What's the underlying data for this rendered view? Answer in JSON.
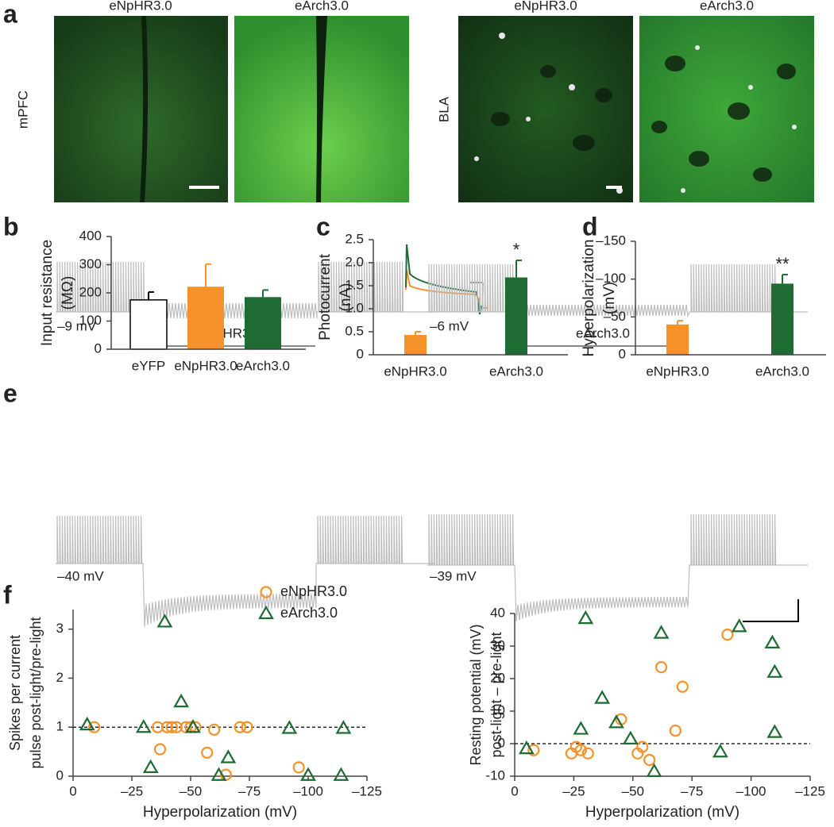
{
  "panel_labels": [
    "a",
    "b",
    "c",
    "d",
    "e",
    "f"
  ],
  "panel_a": {
    "row_labels": [
      "mPFC",
      "BLA"
    ],
    "titles": [
      "eNpHR3.0",
      "eArch3.0",
      "eNpHR3.0",
      "eArch3.0"
    ]
  },
  "panel_e": {
    "titles": [
      "eNpHR3.0",
      "eArch3.0"
    ],
    "potentials": [
      "–9 mV",
      "–6 mV",
      "–40 mV",
      "–39 mV"
    ]
  },
  "chart_data": [
    {
      "type": "bar",
      "ylabel": [
        "Input resistance",
        "(MΩ)"
      ],
      "categories": [
        "eYFP",
        "eNpHR3.0",
        "eArch3.0"
      ],
      "values": [
        175,
        222,
        185
      ],
      "errors": [
        28,
        80,
        25
      ],
      "colors": [
        "#ffffff",
        "#f7922a",
        "#1e6b34"
      ],
      "ylim": [
        0,
        400
      ],
      "yticks": [
        0,
        100,
        200,
        300,
        400
      ]
    },
    {
      "type": "bar",
      "ylabel": [
        "Photocurrent",
        "(nA)"
      ],
      "categories": [
        "eNpHR3.0",
        "eArch3.0"
      ],
      "values": [
        0.43,
        1.68
      ],
      "errors": [
        0.07,
        0.37
      ],
      "colors": [
        "#f7922a",
        "#1e6b34"
      ],
      "annotation": {
        "category": "eArch3.0",
        "text": "*"
      },
      "ylim": [
        0,
        2.5
      ],
      "yticks": [
        0,
        0.5,
        {
          "value": 1,
          "label": "1.0"
        },
        1.5,
        {
          "value": 2,
          "label": "2.0"
        },
        2.5
      ]
    },
    {
      "type": "bar",
      "ylabel": [
        "Hyperpolarization",
        "(mV)"
      ],
      "categories": [
        "eNpHR3.0",
        "eArch3.0"
      ],
      "values": [
        -40,
        -94
      ],
      "errors": [
        5,
        12
      ],
      "colors": [
        "#f7922a",
        "#1e6b34"
      ],
      "annotation": {
        "category": "eArch3.0",
        "text": "**"
      },
      "ylim": [
        0,
        -150
      ],
      "yticks": [
        0,
        {
          "value": -50,
          "label": "–50"
        },
        {
          "value": -100,
          "label": "–100"
        },
        {
          "value": -150,
          "label": "–150"
        }
      ]
    },
    {
      "type": "scatter",
      "ylabel": [
        "Spikes per current",
        "pulse post-light/pre-light"
      ],
      "xlabel": "Hyperpolarization (mV)",
      "xlim": [
        0,
        -125
      ],
      "xticks": [
        0,
        {
          "value": -25,
          "label": "–25"
        },
        {
          "value": -50,
          "label": "–50"
        },
        {
          "value": -75,
          "label": "–75"
        },
        {
          "value": -100,
          "label": "–100"
        },
        {
          "value": -125,
          "label": "–125"
        }
      ],
      "ylim": [
        0,
        3.4
      ],
      "yticks": [
        0,
        1,
        2,
        3
      ],
      "reference_line": 1,
      "legend": "top-right",
      "series": [
        {
          "name": "eNpHR3.0",
          "color": "#f7922a",
          "marker": "circle",
          "x": [
            -9,
            -37,
            -36,
            -40,
            -42,
            -44,
            -48,
            -50,
            -52,
            -57,
            -60,
            -65,
            -71,
            -74,
            -96
          ],
          "values": [
            1.0,
            0.55,
            1.0,
            1.0,
            1.0,
            1.0,
            1.0,
            1.0,
            1.0,
            0.48,
            0.95,
            0.03,
            1.0,
            1.0,
            0.18
          ]
        },
        {
          "name": "eArch3.0",
          "color": "#1e6b34",
          "marker": "triangle",
          "x": [
            -6,
            -30,
            -33,
            -39,
            -46,
            -51,
            -62,
            -66,
            -92,
            -100,
            -114,
            -115
          ],
          "values": [
            1.05,
            1.0,
            0.18,
            3.15,
            1.52,
            1.0,
            0.02,
            0.38,
            0.98,
            0.02,
            0.02,
            0.98
          ]
        }
      ]
    },
    {
      "type": "scatter",
      "ylabel": [
        "Resting potential (mV)",
        "post-light – pre-light"
      ],
      "xlabel": "Hyperpolarization (mV)",
      "xlim": [
        0,
        -125
      ],
      "xticks": [
        0,
        {
          "value": -25,
          "label": "–25"
        },
        {
          "value": -50,
          "label": "–50"
        },
        {
          "value": -75,
          "label": "–75"
        },
        {
          "value": -100,
          "label": "–100"
        },
        {
          "value": -125,
          "label": "–125"
        }
      ],
      "ylim": [
        -10,
        40
      ],
      "yticks": [
        -10,
        0,
        10,
        20,
        30,
        40
      ],
      "reference_line": 0,
      "series": [
        {
          "name": "eNpHR3.0",
          "color": "#f7922a",
          "marker": "circle",
          "x": [
            -8,
            -24,
            -26,
            -28,
            -31,
            -45,
            -52,
            -54,
            -57,
            -62,
            -68,
            -71,
            -90
          ],
          "values": [
            -2,
            -3,
            -1,
            -2,
            -3,
            7.5,
            -3,
            -1,
            -5,
            23.5,
            4,
            17.5,
            33.5
          ]
        },
        {
          "name": "eArch3.0",
          "color": "#1e6b34",
          "marker": "triangle",
          "x": [
            -5,
            -28,
            -30,
            -37,
            -43,
            -49,
            -59,
            -62,
            -87,
            -95,
            -109,
            -110,
            -110
          ],
          "values": [
            -1.5,
            4.5,
            38.5,
            14,
            6.5,
            1.5,
            -8.5,
            34,
            -2.5,
            36,
            31,
            22,
            3.5
          ]
        }
      ]
    }
  ]
}
